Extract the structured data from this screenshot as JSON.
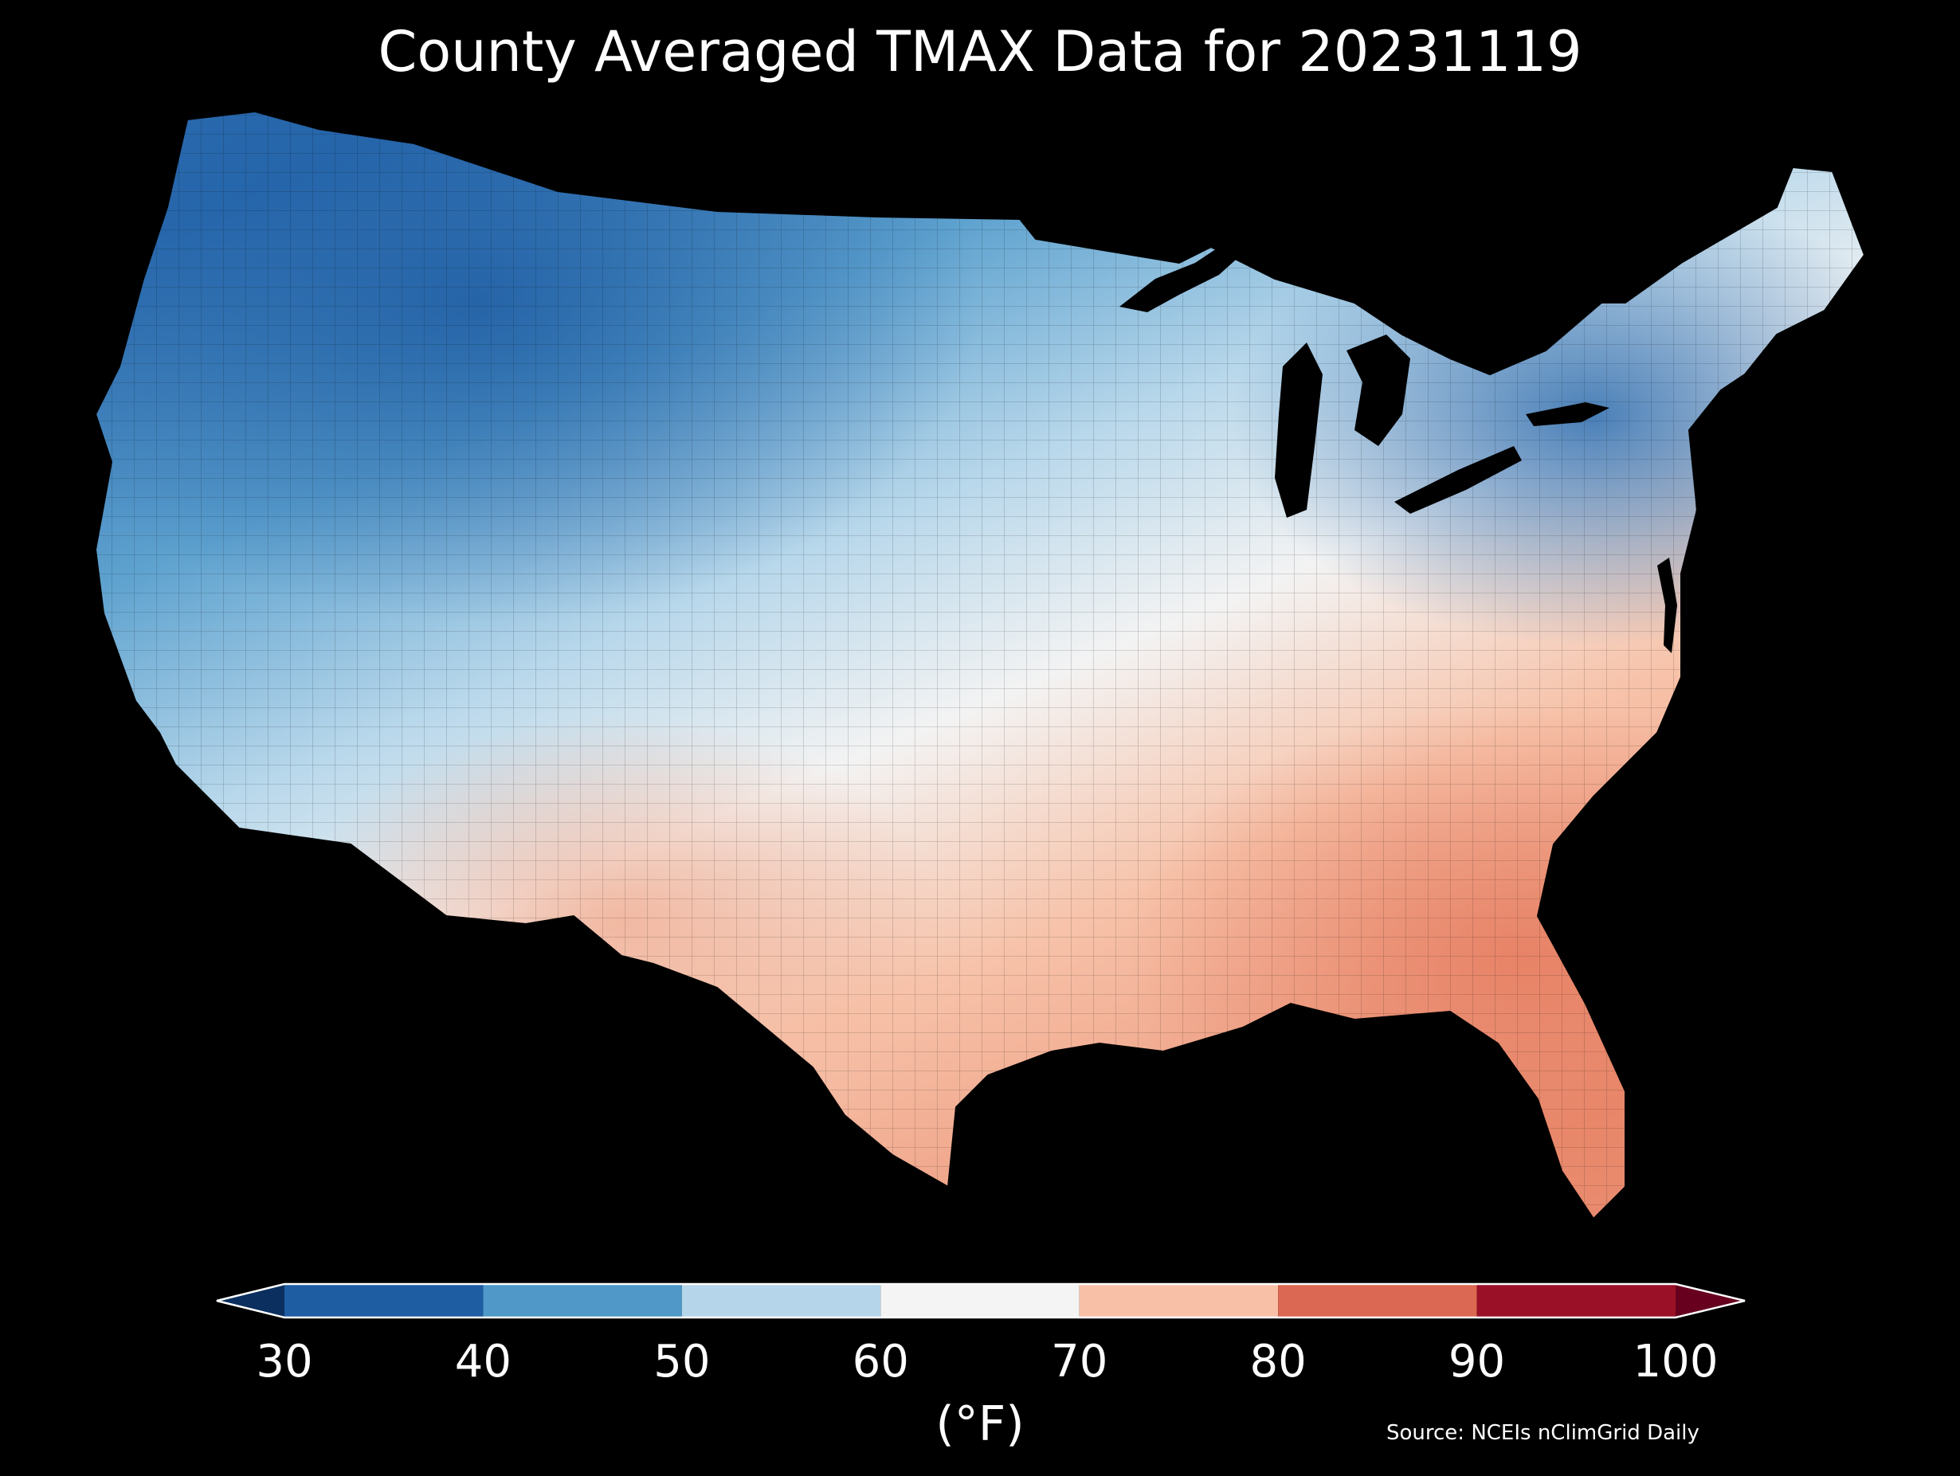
{
  "title": "County Averaged TMAX Data for 20231119",
  "colorbar": {
    "unit_label": "(°F)",
    "ticks": [
      "30",
      "40",
      "50",
      "60",
      "70",
      "80",
      "90",
      "100"
    ],
    "bins": [
      {
        "from": 30,
        "to": 40,
        "color": "#1f5da3"
      },
      {
        "from": 40,
        "to": 50,
        "color": "#4f98c8"
      },
      {
        "from": 50,
        "to": 60,
        "color": "#b5d6ea"
      },
      {
        "from": 60,
        "to": 70,
        "color": "#f4f4f4"
      },
      {
        "from": 70,
        "to": 80,
        "color": "#f8c1a7"
      },
      {
        "from": 80,
        "to": 90,
        "color": "#db6852"
      },
      {
        "from": 90,
        "to": 100,
        "color": "#9a1127"
      }
    ],
    "under_color": "#0b2f5e",
    "over_color": "#67001f"
  },
  "source": "Source: NCEIs nClimGrid Daily",
  "map": {
    "region": "Contiguous United States",
    "land_gradient": [
      "#1f5da3",
      "#4f98c8",
      "#b5d6ea",
      "#f4f4f4",
      "#f8c1a7",
      "#e88f72"
    ],
    "background_color": "#000000",
    "border_color": "#000000"
  }
}
